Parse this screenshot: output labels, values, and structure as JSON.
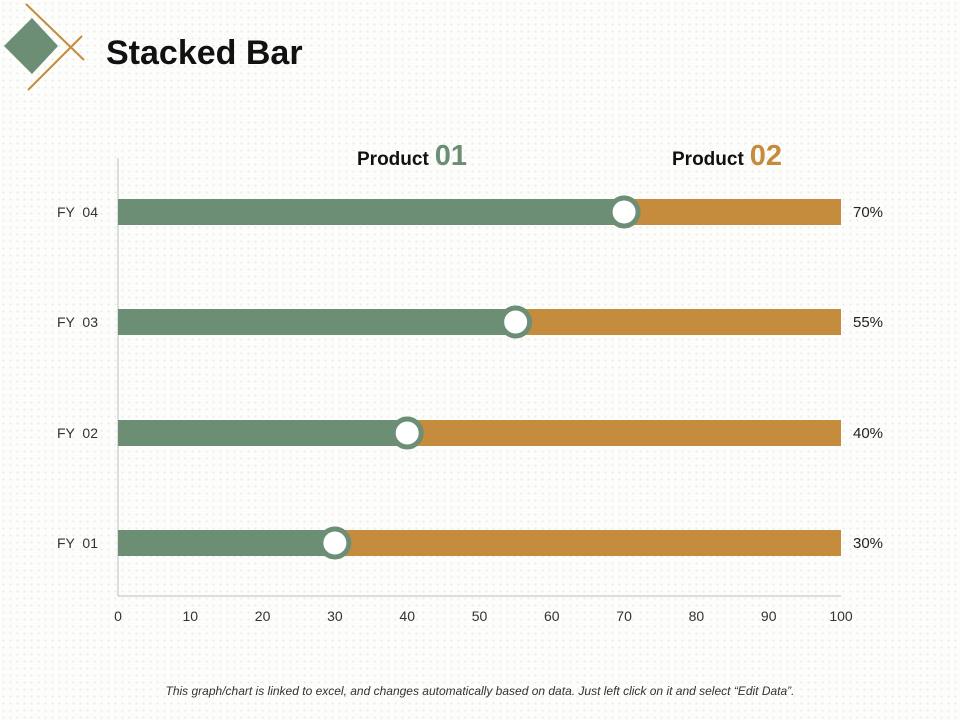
{
  "page": {
    "title": "Stacked Bar",
    "footnote": "This graph/chart is linked to excel, and changes automatically based on data. Just left click on it and select “Edit Data”."
  },
  "legend": [
    {
      "word": "Product",
      "number": "01"
    },
    {
      "word": "Product",
      "number": "02"
    }
  ],
  "colors": {
    "product_01": "#6b8e74",
    "product_02": "#c68c3e",
    "marker_fill": "#ffffff",
    "axis": "#bdbdbd",
    "decor_diamond": "#6b8e74",
    "decor_lines": "#c68c3e"
  },
  "icons": {
    "logo": "diamond-with-crossed-lines"
  },
  "chart_data": {
    "type": "bar",
    "orientation": "horizontal",
    "stacked": true,
    "categories": [
      "FY  04",
      "FY  03",
      "FY  02",
      "FY  01"
    ],
    "series": [
      {
        "name": "Product 01",
        "values": [
          70,
          55,
          40,
          30
        ]
      },
      {
        "name": "Product 02",
        "values": [
          30,
          45,
          60,
          70
        ]
      }
    ],
    "value_labels": [
      "70%",
      "55%",
      "40%",
      "30%"
    ],
    "xlim": [
      0,
      100
    ],
    "x_ticks": [
      0,
      10,
      20,
      30,
      40,
      50,
      60,
      70,
      80,
      90,
      100
    ],
    "grid": false,
    "legend_position": "top"
  }
}
